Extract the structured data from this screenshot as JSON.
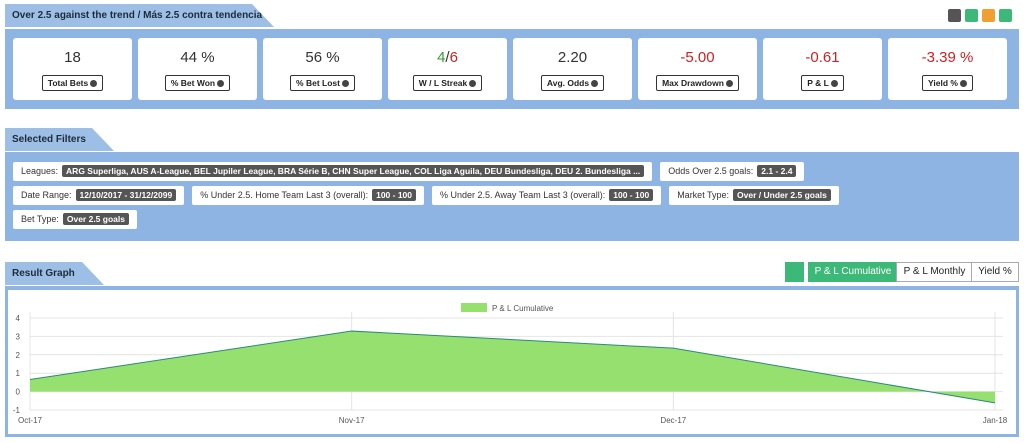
{
  "header": {
    "title": "Over 2.5 against the trend / Más 2.5 contra tendencia"
  },
  "stats": [
    {
      "value": "18",
      "label": "Total Bets",
      "color": "#333333"
    },
    {
      "value": "44 %",
      "label": "% Bet Won",
      "color": "#333333"
    },
    {
      "value": "56 %",
      "label": "% Bet Lost",
      "color": "#333333"
    },
    {
      "value_parts": [
        "4",
        "/",
        "6"
      ],
      "part_colors": [
        "#3a9a3a",
        "#333333",
        "#cc2222"
      ],
      "label": "W / L Streak"
    },
    {
      "value": "2.20",
      "label": "Avg. Odds",
      "color": "#333333"
    },
    {
      "value": "-5.00",
      "label": "Max Drawdown",
      "color": "#cc2222"
    },
    {
      "value": "-0.61",
      "label": "P & L",
      "color": "#cc2222"
    },
    {
      "value": "-3.39 %",
      "label": "Yield %",
      "color": "#cc2222"
    }
  ],
  "filters": {
    "title": "Selected Filters",
    "items": [
      {
        "label": "Leagues:",
        "value": "ARG Superliga, AUS A-League, BEL Jupiler League, BRA Série B, CHN Super League, COL Liga Aguila, DEU Bundesliga, DEU 2. Bundesliga ..."
      },
      {
        "label": "Odds Over 2.5 goals:",
        "value": "2.1 - 2.4"
      },
      {
        "label": "Date Range:",
        "value": "12/10/2017 - 31/12/2099"
      },
      {
        "label": "% Under 2.5. Home Team Last 3 (overall):",
        "value": "100 - 100"
      },
      {
        "label": "% Under 2.5. Away Team Last 3 (overall):",
        "value": "100 - 100"
      },
      {
        "label": "Market Type:",
        "value": "Over / Under 2.5 goals"
      },
      {
        "label": "Bet Type:",
        "value": "Over 2.5 goals"
      }
    ]
  },
  "result_graph": {
    "title": "Result Graph",
    "buttons": [
      "P & L Cumulative",
      "P & L Monthly",
      "Yield %"
    ],
    "active": 0
  },
  "chart_data": {
    "type": "area",
    "x": [
      "Oct-17",
      "Nov-17",
      "Dec-17",
      "Jan-18"
    ],
    "series": [
      {
        "name": "P & L Cumulative",
        "color": "#95e06f",
        "line_color": "#2a8a7a",
        "values": [
          0.66,
          3.29,
          2.36,
          -0.61
        ]
      }
    ],
    "ylim": [
      -1,
      4
    ],
    "yticks": [
      -1,
      0,
      1,
      2,
      3,
      4
    ],
    "grid": true,
    "legend": "top"
  }
}
